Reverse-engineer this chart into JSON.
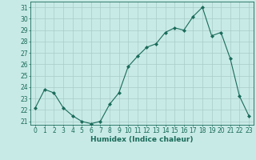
{
  "x": [
    0,
    1,
    2,
    3,
    4,
    5,
    6,
    7,
    8,
    9,
    10,
    11,
    12,
    13,
    14,
    15,
    16,
    17,
    18,
    19,
    20,
    21,
    22,
    23
  ],
  "y": [
    22.2,
    23.8,
    23.5,
    22.2,
    21.5,
    21.0,
    20.8,
    21.0,
    22.5,
    23.5,
    25.8,
    26.7,
    27.5,
    27.8,
    28.8,
    29.2,
    29.0,
    30.2,
    31.0,
    28.5,
    28.8,
    26.5,
    23.2,
    21.5
  ],
  "line_color": "#1a6b5a",
  "marker": "D",
  "marker_size": 2,
  "bg_color": "#c8eae6",
  "grid_color": "#a8ccc8",
  "xlabel": "Humidex (Indice chaleur)",
  "ylim": [
    20.7,
    31.5
  ],
  "xlim": [
    -0.5,
    23.5
  ],
  "yticks": [
    21,
    22,
    23,
    24,
    25,
    26,
    27,
    28,
    29,
    30,
    31
  ],
  "xticks": [
    0,
    1,
    2,
    3,
    4,
    5,
    6,
    7,
    8,
    9,
    10,
    11,
    12,
    13,
    14,
    15,
    16,
    17,
    18,
    19,
    20,
    21,
    22,
    23
  ],
  "tick_color": "#1a6b5a",
  "label_fontsize": 6.5,
  "tick_fontsize": 5.5
}
